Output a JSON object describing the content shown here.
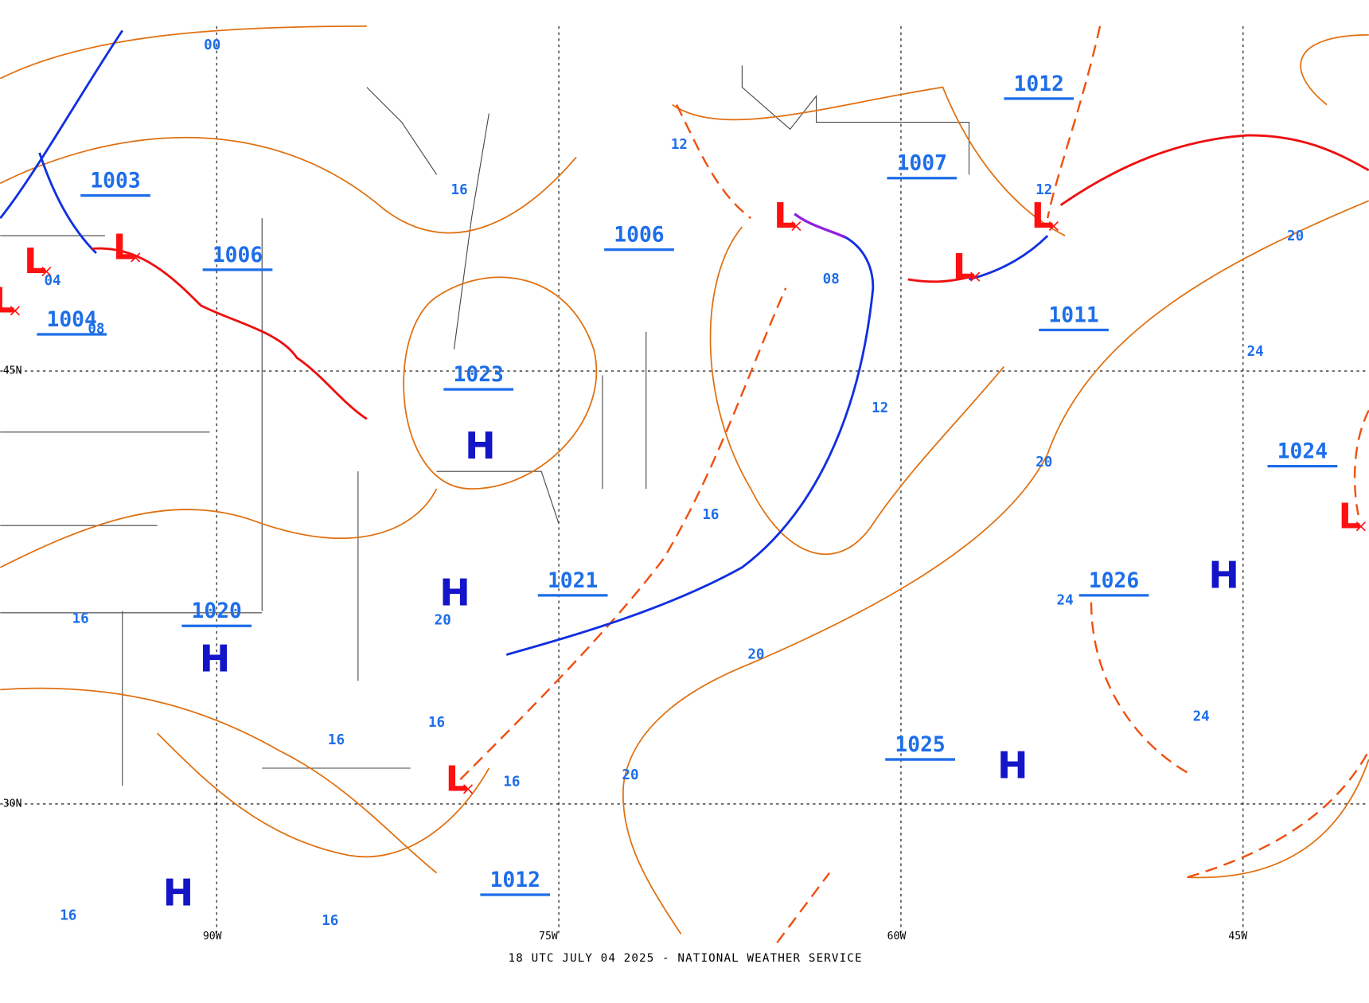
{
  "map": {
    "pressure_labels": [
      "1003",
      "1006",
      "1004",
      "1020",
      "1023",
      "1021",
      "1006",
      "1007",
      "1012",
      "1011",
      "1024",
      "1026",
      "1025",
      "1012"
    ],
    "highs": [
      "H",
      "H",
      "H",
      "H",
      "H",
      "H"
    ],
    "lows": [
      "L",
      "L",
      "L",
      "L",
      "L",
      "L",
      "L",
      "L"
    ],
    "isobar_labels": [
      "00",
      "04",
      "08",
      "12",
      "16",
      "08",
      "12",
      "20",
      "24",
      "12",
      "16",
      "20",
      "20",
      "20",
      "24",
      "24",
      "16",
      "16",
      "16",
      "16",
      "20",
      "16",
      "16"
    ],
    "grid_labels": [
      "45N",
      "30N",
      "90W",
      "75W",
      "60W",
      "45W"
    ],
    "footer": "18 UTC JULY 04 2025 - NATIONAL WEATHER SERVICE"
  }
}
